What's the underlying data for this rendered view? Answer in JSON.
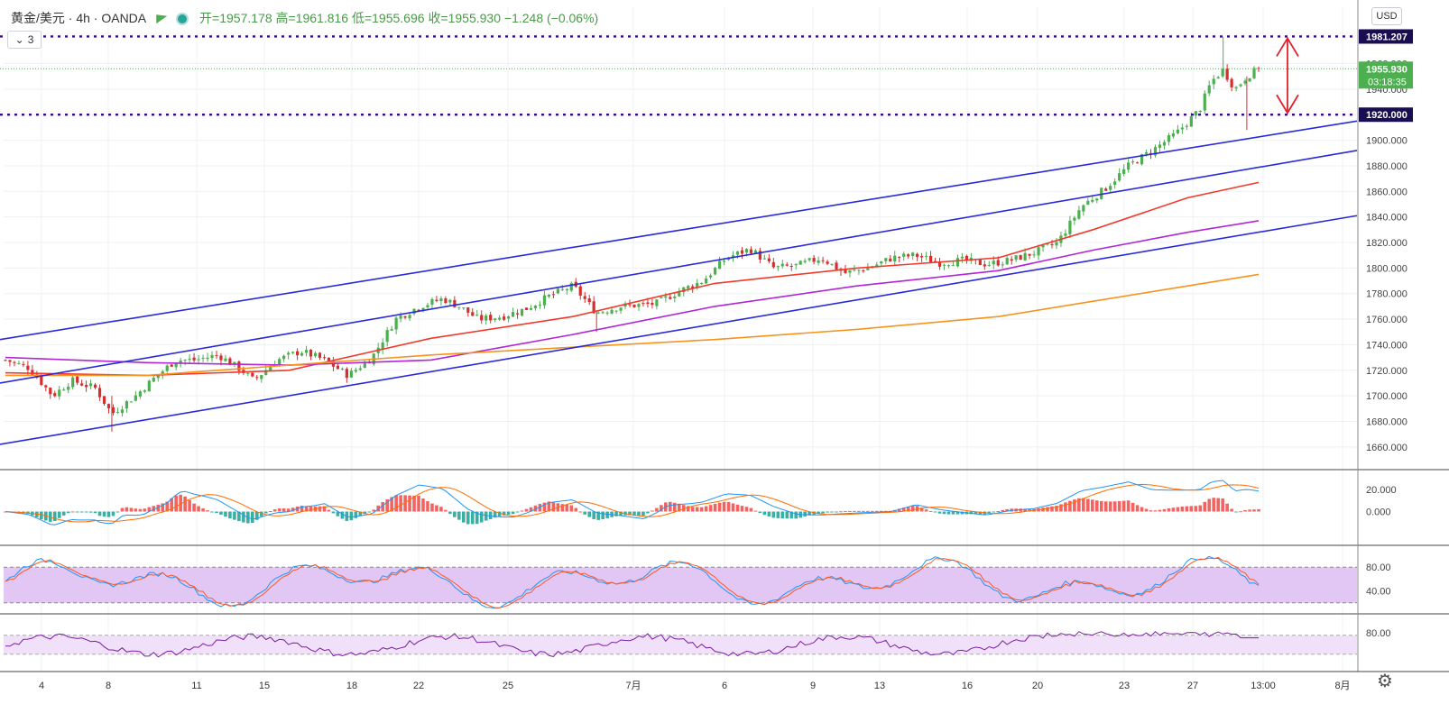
{
  "header": {
    "symbol": "黄金/美元 · 4h · OANDA",
    "open": "开=1957.178",
    "high": "高=1961.816",
    "low": "低=1955.696",
    "close": "收=1955.930",
    "change": "−1.248 (−0.06%)",
    "collapse_count": "3",
    "currency": "USD"
  },
  "colors": {
    "up": "#4caf50",
    "down": "#d32f2f",
    "channel": "#2a2ad8",
    "ma_fast": "#ef3b2c",
    "ma_mid": "#b126d6",
    "ma_slow": "#f7931e",
    "level_line": "#3a0a8a",
    "arrow": "#e0202a",
    "price_label": "#4caf50",
    "stoch_band": "#e2c7f5",
    "rsi_band": "#f1e0fa"
  },
  "chart_data": [
    {
      "type": "candlestick",
      "pane": "price",
      "ylim": [
        1650,
        1990
      ],
      "y_ticks": [
        "1660.000",
        "1680.000",
        "1700.000",
        "1720.000",
        "1740.000",
        "1760.000",
        "1780.000",
        "1800.000",
        "1820.000",
        "1840.000",
        "1860.000",
        "1880.000",
        "1900.000",
        "1920.000",
        "1940.000",
        "1960.000",
        "1981.207"
      ],
      "x_tick_labels": [
        "4",
        "8",
        "11",
        "15",
        "18",
        "22",
        "25",
        "7月",
        "6",
        "9",
        "13",
        "16",
        "20",
        "23",
        "27",
        "13:00",
        "8月"
      ],
      "bar_count": 280,
      "close_path": [
        [
          0,
          1728
        ],
        [
          10,
          1722
        ],
        [
          20,
          1700
        ],
        [
          28,
          1712
        ],
        [
          38,
          1706
        ],
        [
          45,
          1686
        ],
        [
          55,
          1700
        ],
        [
          63,
          1714
        ],
        [
          72,
          1728
        ],
        [
          80,
          1728
        ],
        [
          90,
          1732
        ],
        [
          100,
          1720
        ],
        [
          105,
          1712
        ],
        [
          115,
          1728
        ],
        [
          125,
          1735
        ],
        [
          135,
          1728
        ],
        [
          145,
          1716
        ],
        [
          155,
          1730
        ],
        [
          165,
          1760
        ],
        [
          175,
          1770
        ],
        [
          185,
          1776
        ],
        [
          192,
          1770
        ],
        [
          200,
          1760
        ],
        [
          210,
          1762
        ],
        [
          220,
          1768
        ],
        [
          230,
          1778
        ],
        [
          240,
          1786
        ],
        [
          250,
          1765
        ],
        [
          260,
          1770
        ],
        [
          275,
          1772
        ],
        [
          285,
          1782
        ],
        [
          295,
          1790
        ],
        [
          305,
          1808
        ],
        [
          315,
          1815
        ],
        [
          325,
          1800
        ],
        [
          335,
          1802
        ],
        [
          345,
          1808
        ],
        [
          355,
          1796
        ],
        [
          365,
          1800
        ],
        [
          375,
          1808
        ],
        [
          385,
          1810
        ],
        [
          395,
          1804
        ],
        [
          405,
          1806
        ],
        [
          415,
          1803
        ],
        [
          425,
          1806
        ],
        [
          435,
          1812
        ],
        [
          445,
          1820
        ],
        [
          455,
          1848
        ],
        [
          465,
          1862
        ],
        [
          475,
          1880
        ],
        [
          485,
          1892
        ],
        [
          495,
          1905
        ],
        [
          505,
          1924
        ],
        [
          510,
          1946
        ],
        [
          515,
          1955
        ],
        [
          520,
          1940
        ],
        [
          525,
          1950
        ],
        [
          530,
          1956
        ]
      ],
      "overlay_path_x_scale": "first candle x index 0 to last candle x index 530 maps across the plotted bar range",
      "moving_averages": [
        {
          "color_key": "ma_fast",
          "path": [
            [
              0,
              1718
            ],
            [
              60,
              1716
            ],
            [
              120,
              1720
            ],
            [
              180,
              1745
            ],
            [
              240,
              1762
            ],
            [
              300,
              1788
            ],
            [
              360,
              1800
            ],
            [
              420,
              1808
            ],
            [
              460,
              1830
            ],
            [
              500,
              1855
            ],
            [
              530,
              1867
            ]
          ]
        },
        {
          "color_key": "ma_mid",
          "path": [
            [
              0,
              1730
            ],
            [
              60,
              1726
            ],
            [
              120,
              1724
            ],
            [
              180,
              1728
            ],
            [
              240,
              1748
            ],
            [
              300,
              1770
            ],
            [
              360,
              1786
            ],
            [
              420,
              1798
            ],
            [
              460,
              1814
            ],
            [
              500,
              1828
            ],
            [
              530,
              1837
            ]
          ]
        },
        {
          "color_key": "ma_slow",
          "path": [
            [
              0,
              1716
            ],
            [
              60,
              1716
            ],
            [
              120,
              1724
            ],
            [
              180,
              1732
            ],
            [
              240,
              1738
            ],
            [
              300,
              1744
            ],
            [
              360,
              1752
            ],
            [
              420,
              1762
            ],
            [
              460,
              1774
            ],
            [
              500,
              1786
            ],
            [
              530,
              1795
            ]
          ]
        }
      ],
      "channel_lines": [
        {
          "from": [
            -5,
            1744
          ],
          "to": [
            560,
            1915
          ]
        },
        {
          "from": [
            -5,
            1710
          ],
          "to": [
            560,
            1892
          ]
        },
        {
          "from": [
            -5,
            1662
          ],
          "to": [
            560,
            1841
          ]
        }
      ],
      "horizontal_levels": [
        {
          "value": 1981.207,
          "label": "1981.207"
        },
        {
          "value": 1920.0,
          "label": "1920.000"
        }
      ],
      "last_price": {
        "value": 1955.93,
        "label": "1955.930",
        "countdown": "03:18:35"
      }
    },
    {
      "type": "histogram-with-lines",
      "pane": "macd",
      "ylim": [
        -40,
        40
      ],
      "y_ticks": [
        "20.000",
        "0.000"
      ]
    },
    {
      "type": "line",
      "pane": "stochastic",
      "ylim": [
        0,
        100
      ],
      "y_ticks": [
        "80.00",
        "40.00"
      ],
      "band": [
        20,
        80
      ]
    },
    {
      "type": "line",
      "pane": "rsi",
      "y_ticks": [
        "80.00"
      ],
      "band": [
        30,
        70
      ]
    }
  ]
}
